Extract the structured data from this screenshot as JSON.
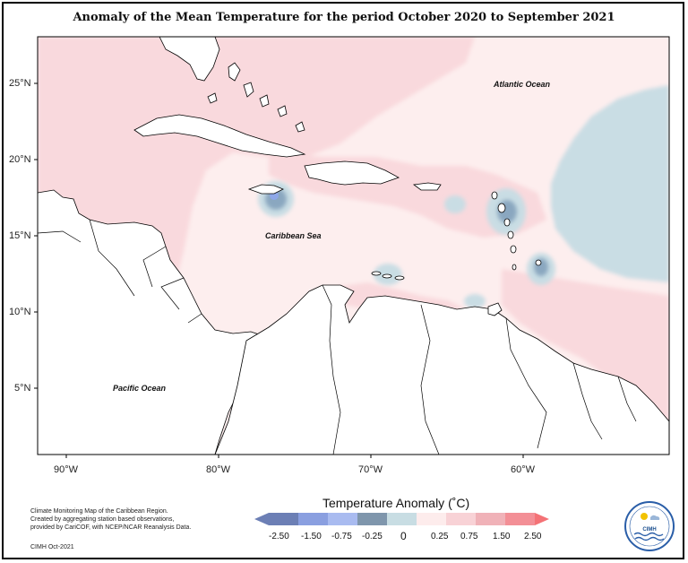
{
  "title": "Anomaly of the Mean Temperature for the period October 2020 to September 2021",
  "map": {
    "lat_labels": [
      "25°N",
      "20°N",
      "15°N",
      "10°N",
      "5°N"
    ],
    "lon_labels": [
      "90°W",
      "80°W",
      "70°W",
      "60°W"
    ],
    "ocean_labels": {
      "atlantic": "Atlantic Ocean",
      "caribbean": "Caribbean Sea",
      "pacific": "Pacific Ocean"
    },
    "colors": {
      "land": "#ffffff",
      "coast": "#000000",
      "neutral": "#fdeeee",
      "pos_025": "#f9d9dd",
      "pos_075": "#f2b9c0",
      "neg_025": "#c9dde4",
      "neg_075": "#8aa7c0",
      "neg_150": "#6a86b0",
      "neg_250": "#8ea7e8"
    }
  },
  "legend": {
    "title": "Temperature Anomaly (˚C)",
    "ticks": [
      "-2.50",
      "-1.50",
      "-0.75",
      "-0.25",
      "0",
      "0.25",
      "0.75",
      "1.50",
      "2.50"
    ],
    "bin_colors": [
      "#6c7fb5",
      "#8a9fe0",
      "#a9bbf0",
      "#7f96ac",
      "#c8dde3",
      "#fdecec",
      "#f8d2d6",
      "#f0b2b8",
      "#f38f96",
      "#f47276"
    ]
  },
  "credit": {
    "lines": [
      "Climate Monitoring Map of the Caribbean Region.",
      "Created by aggregating station based observations,",
      "provided by CariCOF, with NCEP/NCAR Reanalysis Data."
    ],
    "tag": "CIMH Oct-2021"
  },
  "logo": {
    "text": "CIMH"
  }
}
